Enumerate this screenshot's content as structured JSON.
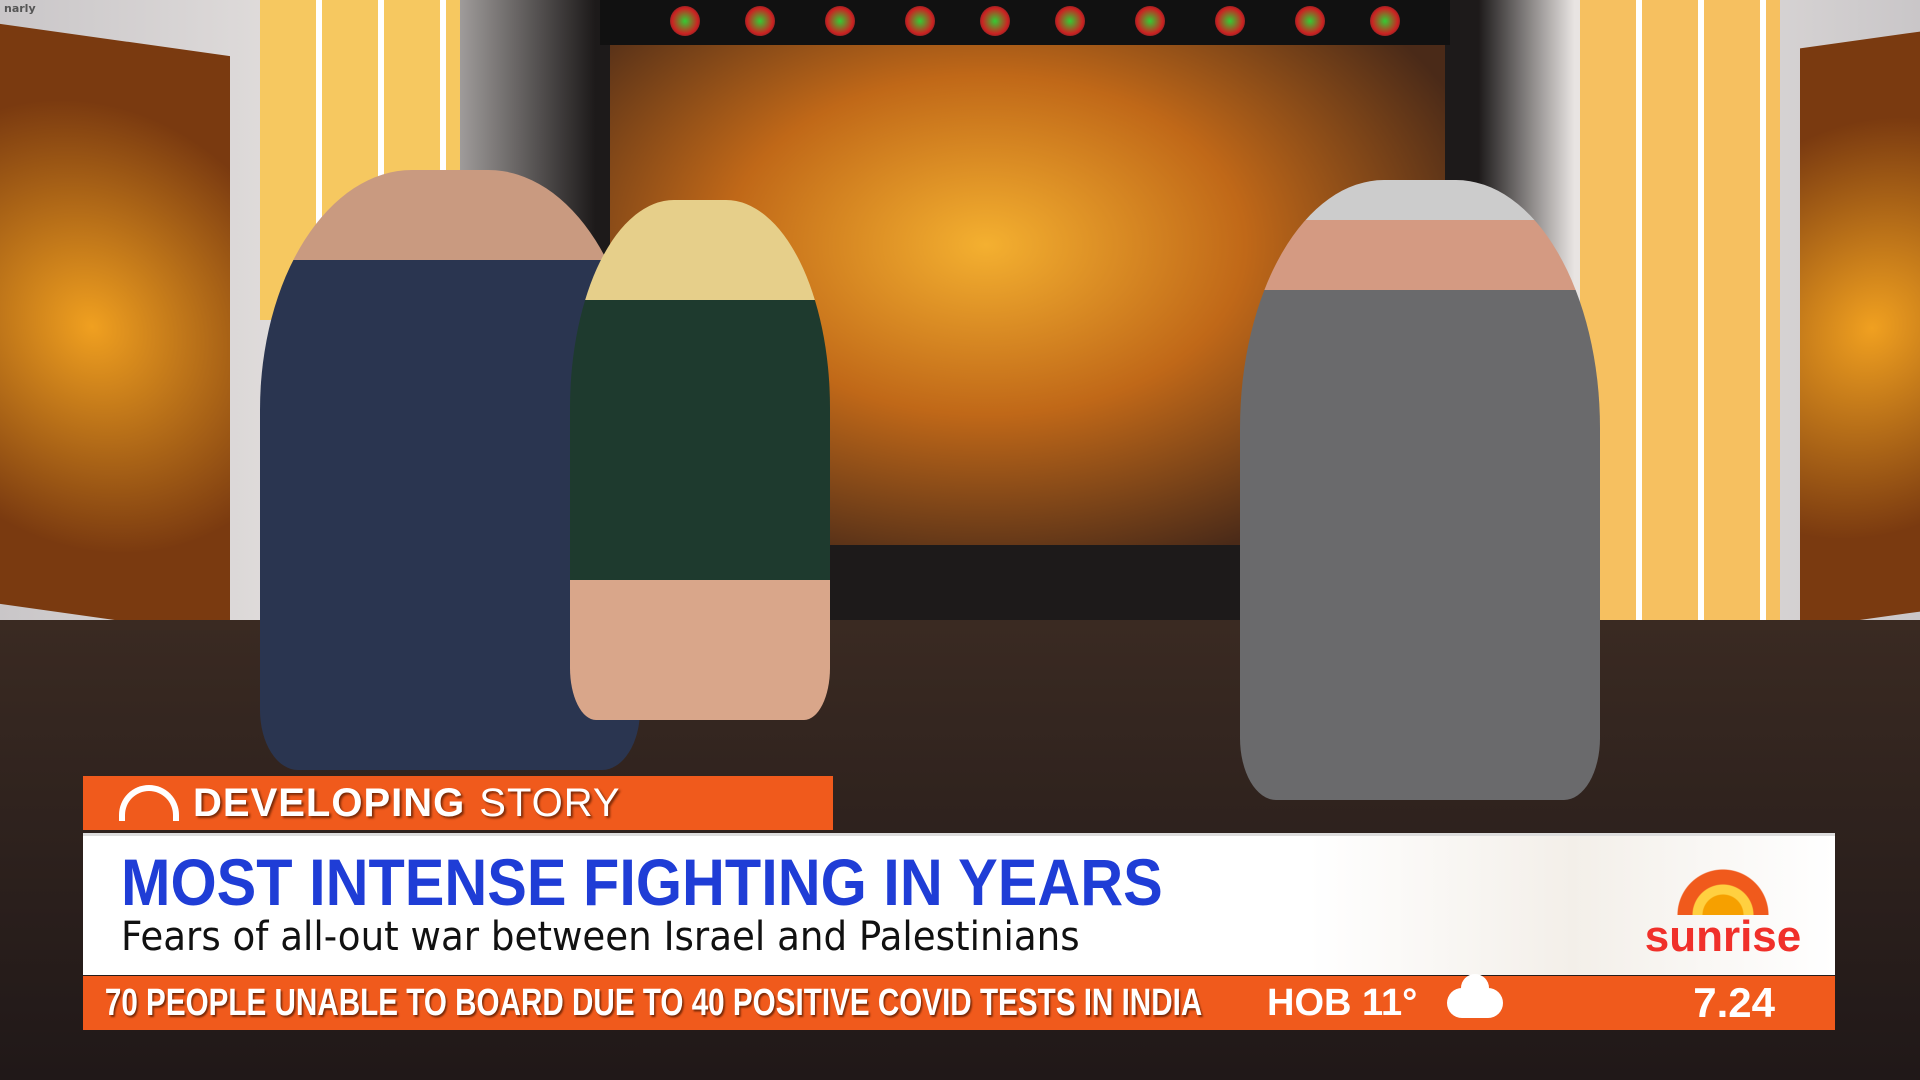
{
  "corner_text": "narly",
  "lower_third": {
    "tag_bold": "DEVELOPING",
    "tag_light": "STORY",
    "headline": "MOST INTENSE FIGHTING IN YEARS",
    "subheadline": "Fears of all-out war between Israel and Palestinians",
    "brand": "sunrise"
  },
  "ticker": {
    "text": "70 PEOPLE UNABLE TO BOARD DUE TO 40 POSITIVE COVID TESTS IN INDIA",
    "weather_location": "HOB",
    "weather_temp": "11°",
    "weather_icon": "cloud-icon",
    "time": "7.24"
  },
  "colors": {
    "accent": "#f05a1c",
    "headline": "#1f3dd6",
    "brand": "#f0302a"
  }
}
